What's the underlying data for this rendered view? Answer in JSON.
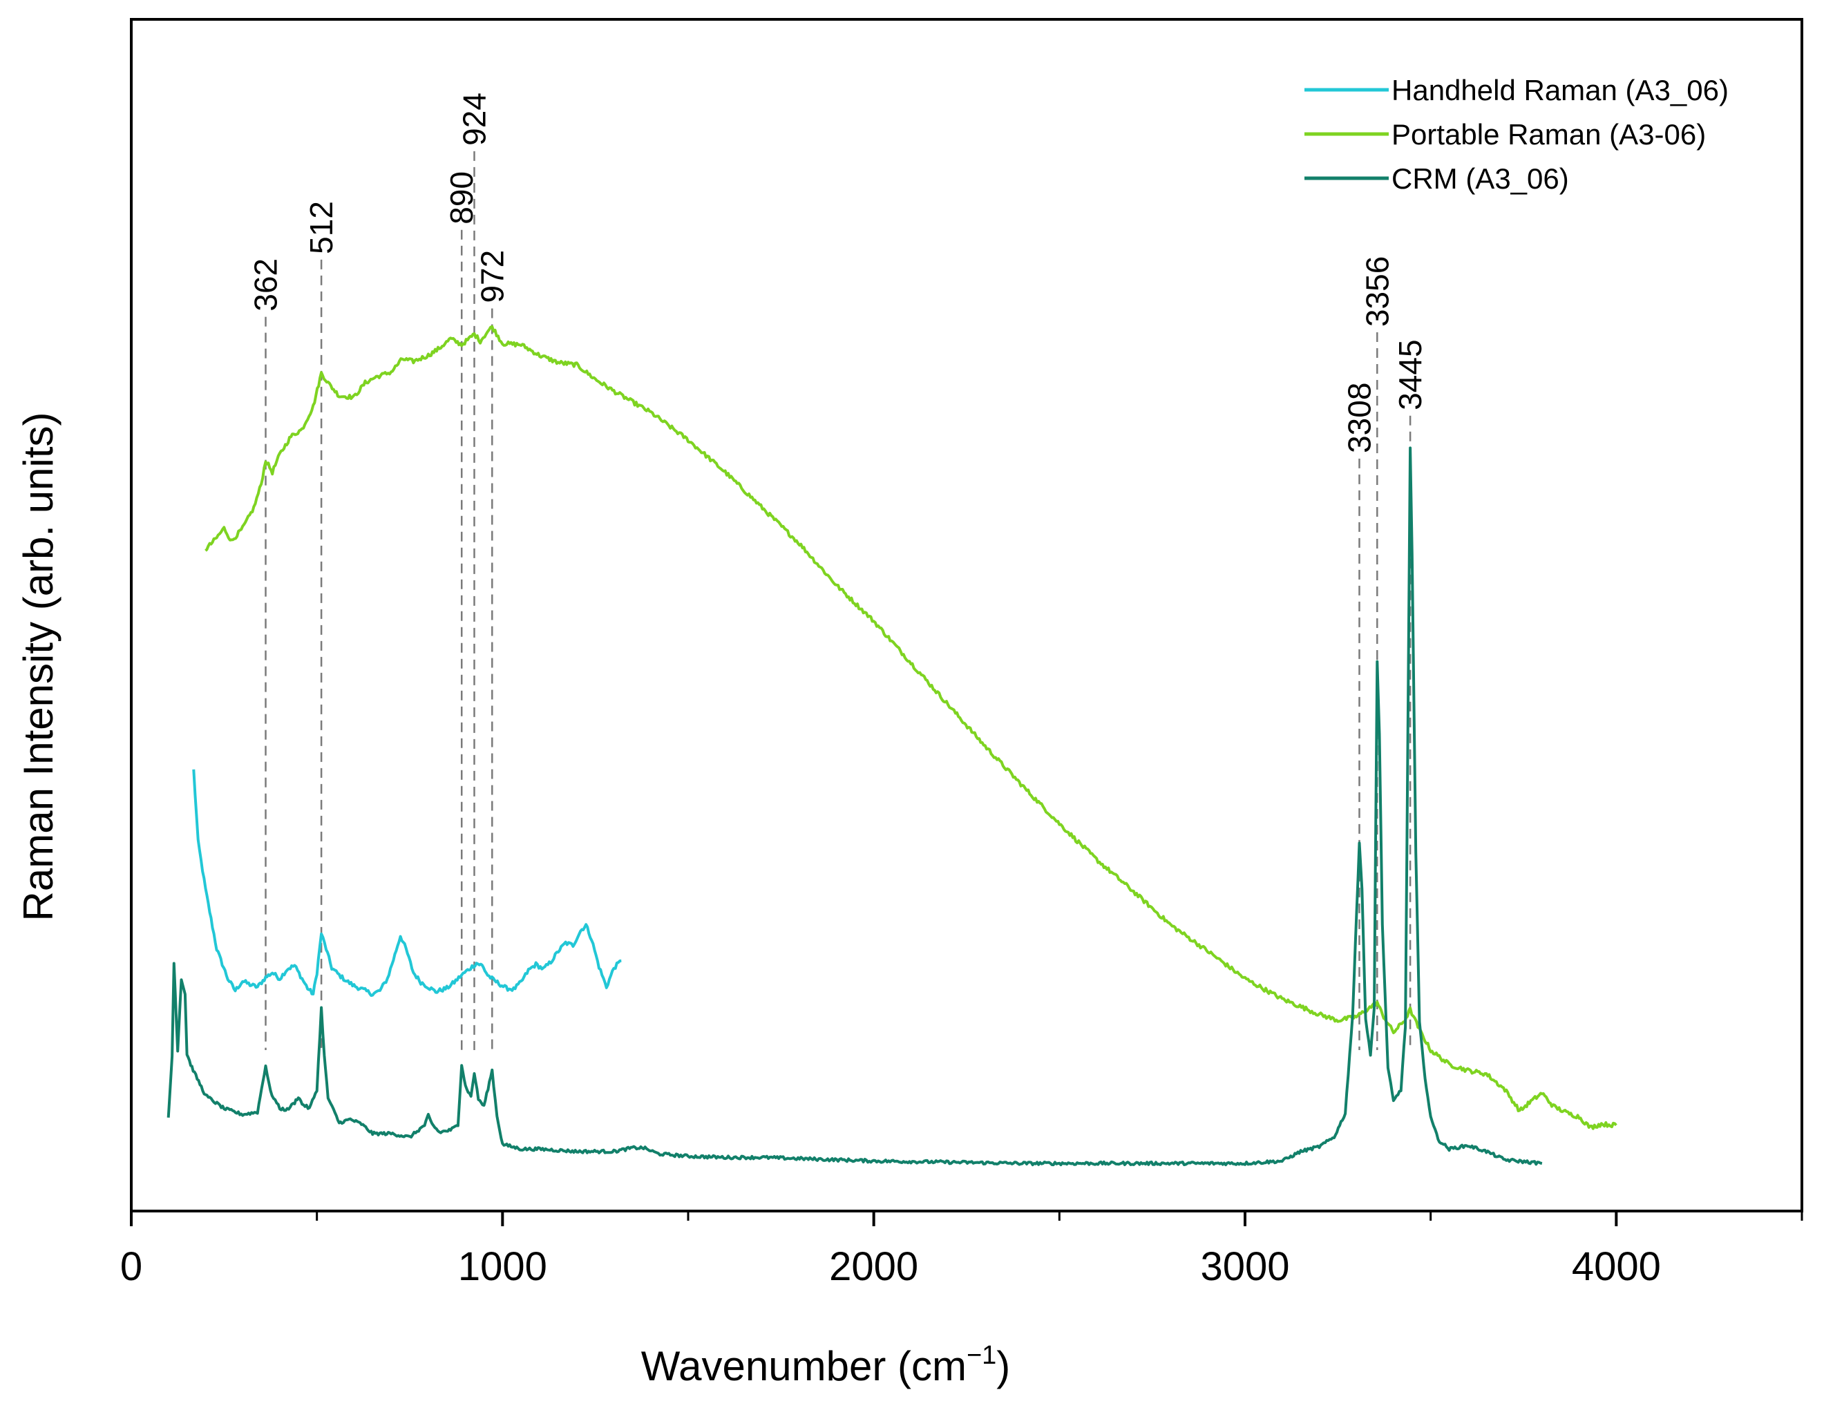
{
  "chart_data": {
    "type": "line",
    "title": "",
    "xlabel": "Wavenumber (cm",
    "xlabel_sup": "−1",
    "xlabel_end": ")",
    "ylabel": "Raman Intensity (arb. units)",
    "xlim": [
      0,
      4500
    ],
    "ylim": [
      0,
      100
    ],
    "x_ticks": [
      0,
      1000,
      2000,
      3000,
      4000
    ],
    "x_tick_labels": [
      "0",
      "1000",
      "2000",
      "3000",
      "4000"
    ],
    "x_minor_ticks": [
      500,
      1500,
      2500,
      3500,
      4500
    ],
    "y_ticks_shown": false,
    "legend_position": "top-right",
    "series": [
      {
        "name": "Handheld Raman (A3_06)",
        "color": "#22c7d6",
        "points": [
          [
            168,
            37
          ],
          [
            180,
            31
          ],
          [
            200,
            27
          ],
          [
            230,
            22
          ],
          [
            260,
            19.5
          ],
          [
            280,
            18.5
          ],
          [
            300,
            19.3
          ],
          [
            320,
            19
          ],
          [
            340,
            18.8
          ],
          [
            362,
            19.6
          ],
          [
            380,
            20
          ],
          [
            400,
            19.5
          ],
          [
            420,
            20.3
          ],
          [
            440,
            20.6
          ],
          [
            460,
            19.5
          ],
          [
            475,
            18.7
          ],
          [
            490,
            18.2
          ],
          [
            500,
            20
          ],
          [
            512,
            23.3
          ],
          [
            525,
            22
          ],
          [
            540,
            20.4
          ],
          [
            560,
            19.8
          ],
          [
            580,
            19.3
          ],
          [
            600,
            18.9
          ],
          [
            630,
            18.5
          ],
          [
            650,
            18.2
          ],
          [
            670,
            18.5
          ],
          [
            690,
            19.5
          ],
          [
            710,
            21.5
          ],
          [
            725,
            23.1
          ],
          [
            740,
            22
          ],
          [
            760,
            20
          ],
          [
            780,
            19.2
          ],
          [
            800,
            18.8
          ],
          [
            820,
            18.4
          ],
          [
            850,
            18.7
          ],
          [
            870,
            19.2
          ],
          [
            890,
            19.8
          ],
          [
            910,
            20.3
          ],
          [
            930,
            20.8
          ],
          [
            945,
            20.6
          ],
          [
            960,
            19.8
          ],
          [
            975,
            19.4
          ],
          [
            990,
            19.1
          ],
          [
            1010,
            18.7
          ],
          [
            1030,
            18.6
          ],
          [
            1050,
            19.2
          ],
          [
            1070,
            20.2
          ],
          [
            1090,
            20.7
          ],
          [
            1110,
            20.3
          ],
          [
            1130,
            20.9
          ],
          [
            1150,
            21.8
          ],
          [
            1170,
            22.5
          ],
          [
            1190,
            22.3
          ],
          [
            1210,
            23.5
          ],
          [
            1225,
            24
          ],
          [
            1240,
            22.8
          ],
          [
            1260,
            20.5
          ],
          [
            1280,
            18.8
          ],
          [
            1300,
            20.4
          ],
          [
            1320,
            21
          ]
        ]
      },
      {
        "name": "Portable Raman (A3-06)",
        "color": "#7ed321",
        "points": [
          [
            200,
            55.5
          ],
          [
            230,
            56.5
          ],
          [
            250,
            57.3
          ],
          [
            270,
            56.2
          ],
          [
            300,
            57.3
          ],
          [
            330,
            59
          ],
          [
            350,
            61
          ],
          [
            362,
            63
          ],
          [
            380,
            62
          ],
          [
            400,
            63.5
          ],
          [
            430,
            65
          ],
          [
            460,
            65.6
          ],
          [
            490,
            67.5
          ],
          [
            512,
            70.3
          ],
          [
            530,
            69.5
          ],
          [
            560,
            68.4
          ],
          [
            600,
            68.3
          ],
          [
            630,
            69.5
          ],
          [
            660,
            70
          ],
          [
            700,
            70.4
          ],
          [
            730,
            71.5
          ],
          [
            760,
            71.3
          ],
          [
            800,
            71.8
          ],
          [
            830,
            72.4
          ],
          [
            860,
            73.2
          ],
          [
            890,
            72.7
          ],
          [
            910,
            73.2
          ],
          [
            924,
            73.6
          ],
          [
            940,
            73
          ],
          [
            960,
            73.8
          ],
          [
            972,
            74.2
          ],
          [
            1000,
            72.8
          ],
          [
            1050,
            72.7
          ],
          [
            1100,
            71.8
          ],
          [
            1150,
            71.2
          ],
          [
            1200,
            71
          ],
          [
            1250,
            69.8
          ],
          [
            1300,
            68.8
          ],
          [
            1400,
            67
          ],
          [
            1500,
            64.7
          ],
          [
            1600,
            62
          ],
          [
            1700,
            59
          ],
          [
            1800,
            56
          ],
          [
            1900,
            52.5
          ],
          [
            2000,
            49.5
          ],
          [
            2100,
            46
          ],
          [
            2200,
            42.5
          ],
          [
            2300,
            39
          ],
          [
            2400,
            35.7
          ],
          [
            2500,
            32.5
          ],
          [
            2600,
            29.5
          ],
          [
            2700,
            26.8
          ],
          [
            2800,
            24
          ],
          [
            2900,
            21.8
          ],
          [
            3000,
            19.5
          ],
          [
            3100,
            17.8
          ],
          [
            3200,
            16.5
          ],
          [
            3250,
            16
          ],
          [
            3300,
            16.3
          ],
          [
            3356,
            17.5
          ],
          [
            3370,
            16.5
          ],
          [
            3400,
            15
          ],
          [
            3430,
            16
          ],
          [
            3445,
            16.9
          ],
          [
            3470,
            15.2
          ],
          [
            3500,
            13.5
          ],
          [
            3550,
            12.3
          ],
          [
            3600,
            11.8
          ],
          [
            3650,
            11.5
          ],
          [
            3700,
            10.2
          ],
          [
            3740,
            8.4
          ],
          [
            3770,
            9.2
          ],
          [
            3800,
            9.9
          ],
          [
            3830,
            8.8
          ],
          [
            3870,
            8.2
          ],
          [
            3900,
            7.9
          ],
          [
            3930,
            7
          ],
          [
            3960,
            7.3
          ],
          [
            4000,
            7.2
          ]
        ]
      },
      {
        "name": "CRM (A3_06)",
        "color": "#12806a",
        "points": [
          [
            100,
            7.8
          ],
          [
            110,
            13
          ],
          [
            115,
            20.8
          ],
          [
            125,
            13.5
          ],
          [
            135,
            19.5
          ],
          [
            145,
            18.2
          ],
          [
            150,
            13.2
          ],
          [
            160,
            12.3
          ],
          [
            170,
            11.6
          ],
          [
            200,
            9.7
          ],
          [
            250,
            8.6
          ],
          [
            300,
            8.1
          ],
          [
            340,
            8.3
          ],
          [
            362,
            12.2
          ],
          [
            375,
            10
          ],
          [
            400,
            8.6
          ],
          [
            420,
            8.5
          ],
          [
            440,
            9.1
          ],
          [
            450,
            9.6
          ],
          [
            460,
            9
          ],
          [
            480,
            8.6
          ],
          [
            500,
            10.2
          ],
          [
            512,
            17
          ],
          [
            520,
            13
          ],
          [
            530,
            9.5
          ],
          [
            560,
            7.4
          ],
          [
            590,
            7.7
          ],
          [
            620,
            7.3
          ],
          [
            650,
            6.5
          ],
          [
            700,
            6.5
          ],
          [
            750,
            6.2
          ],
          [
            790,
            7.2
          ],
          [
            800,
            8
          ],
          [
            810,
            7.3
          ],
          [
            830,
            6.6
          ],
          [
            860,
            6.8
          ],
          [
            880,
            7.2
          ],
          [
            890,
            12.3
          ],
          [
            900,
            10.5
          ],
          [
            915,
            9.6
          ],
          [
            924,
            11.6
          ],
          [
            935,
            9.4
          ],
          [
            950,
            8.8
          ],
          [
            972,
            11.8
          ],
          [
            985,
            8
          ],
          [
            1000,
            5.6
          ],
          [
            1050,
            5.2
          ],
          [
            1100,
            5.2
          ],
          [
            1200,
            5
          ],
          [
            1300,
            5
          ],
          [
            1350,
            5.3
          ],
          [
            1380,
            5.3
          ],
          [
            1420,
            4.8
          ],
          [
            1500,
            4.6
          ],
          [
            1600,
            4.5
          ],
          [
            1700,
            4.5
          ],
          [
            1800,
            4.4
          ],
          [
            1900,
            4.3
          ],
          [
            2000,
            4.2
          ],
          [
            2200,
            4.1
          ],
          [
            2400,
            4
          ],
          [
            2600,
            4
          ],
          [
            2800,
            4
          ],
          [
            3000,
            4
          ],
          [
            3100,
            4.2
          ],
          [
            3150,
            5
          ],
          [
            3200,
            5.4
          ],
          [
            3240,
            6.2
          ],
          [
            3270,
            8.2
          ],
          [
            3290,
            16.5
          ],
          [
            3308,
            31
          ],
          [
            3315,
            27
          ],
          [
            3325,
            16
          ],
          [
            3338,
            13.2
          ],
          [
            3348,
            17
          ],
          [
            3356,
            46
          ],
          [
            3362,
            40
          ],
          [
            3370,
            24
          ],
          [
            3385,
            12
          ],
          [
            3400,
            9.2
          ],
          [
            3420,
            10.2
          ],
          [
            3432,
            15.5
          ],
          [
            3440,
            45
          ],
          [
            3445,
            64
          ],
          [
            3450,
            55
          ],
          [
            3460,
            30
          ],
          [
            3470,
            16
          ],
          [
            3485,
            11
          ],
          [
            3500,
            8
          ],
          [
            3520,
            6
          ],
          [
            3550,
            5.2
          ],
          [
            3600,
            5.5
          ],
          [
            3650,
            5
          ],
          [
            3700,
            4.3
          ],
          [
            3800,
            4
          ]
        ]
      }
    ],
    "peak_annotations": [
      {
        "label": "362",
        "x": 362,
        "y_top": 75.5
      },
      {
        "label": "512",
        "x": 512,
        "y_top": 80.3
      },
      {
        "label": "890",
        "x": 890,
        "y_top": 82.8
      },
      {
        "label": "924",
        "x": 924,
        "y_top": 89.4
      },
      {
        "label": "972",
        "x": 972,
        "y_top": 76.2
      },
      {
        "label": "3308",
        "x": 3308,
        "y_top": 63.6
      },
      {
        "label": "3356",
        "x": 3356,
        "y_top": 74.2
      },
      {
        "label": "3445",
        "x": 3445,
        "y_top": 67.2
      }
    ]
  }
}
